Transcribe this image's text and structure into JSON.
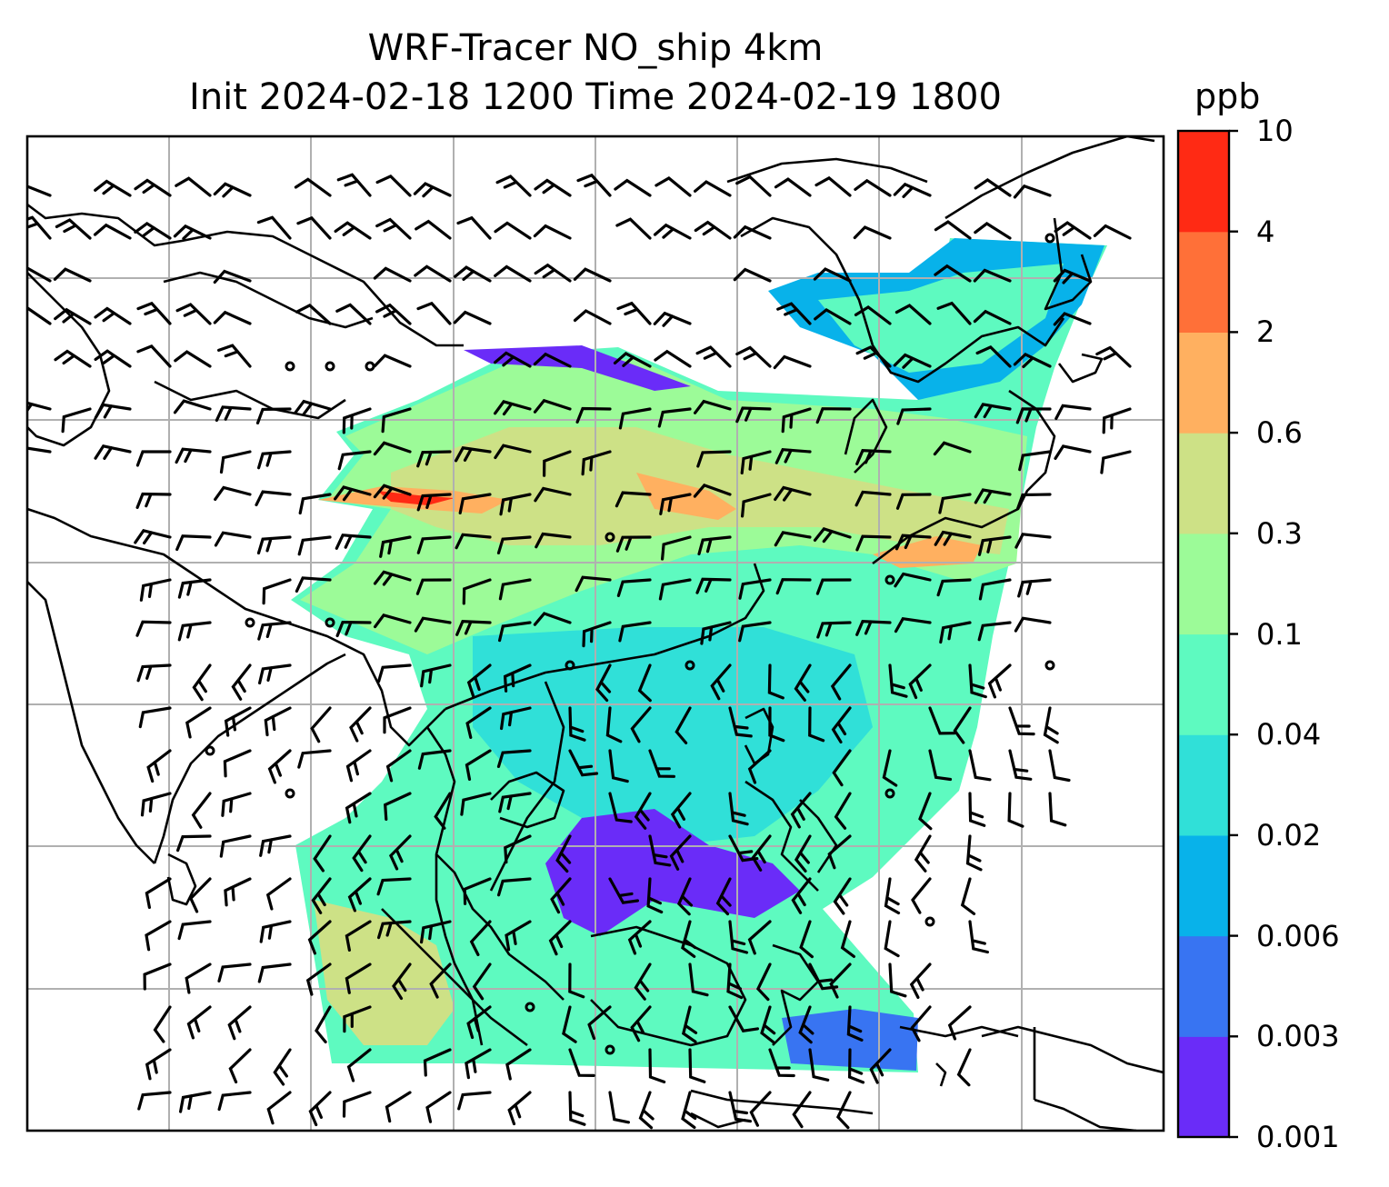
{
  "figure": {
    "title_line1": "WRF-Tracer NO_ship 4km",
    "title_line2": "Init 2024-02-18 1200 Time 2024-02-19 1800"
  },
  "colorbar": {
    "unit": "ppb",
    "levels": [
      "0.001",
      "0.003",
      "0.006",
      "0.02",
      "0.04",
      "0.1",
      "0.3",
      "0.6",
      "2",
      "4",
      "10"
    ],
    "colors": [
      "#6a2cf8",
      "#3874f2",
      "#08b2ea",
      "#30e0d8",
      "#5efac0",
      "#9cfb98",
      "#cde186",
      "#ffb060",
      "#ff7038",
      "#ff2a14"
    ]
  },
  "map": {
    "field_name": "NO_ship tracer",
    "gridlines": true,
    "coastlines": true,
    "wind_barbs": true,
    "colors": {
      "gridline": "#b0b0b0",
      "coast": "#000000",
      "barb": "#000000"
    }
  }
}
